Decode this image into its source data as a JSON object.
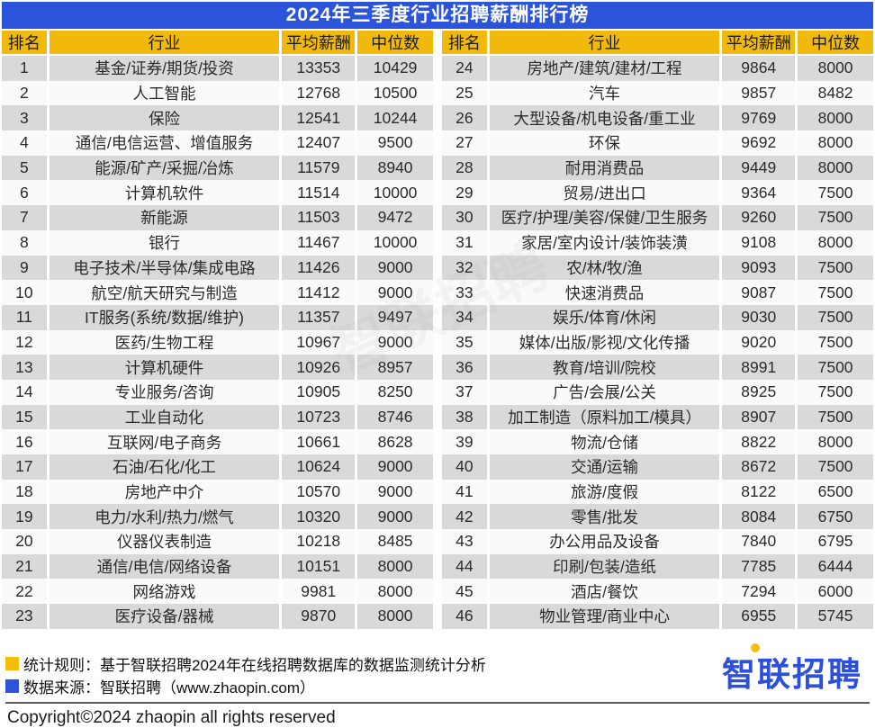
{
  "title": "2024年三季度行业招聘薪酬排行榜",
  "chart_data": {
    "type": "table",
    "title": "2024年三季度行业招聘薪酬排行榜",
    "columns": [
      "排名",
      "行业",
      "平均薪酬",
      "中位数"
    ],
    "rows": [
      [
        1,
        "基金/证券/期货/投资",
        13353,
        10429
      ],
      [
        2,
        "人工智能",
        12768,
        10500
      ],
      [
        3,
        "保险",
        12541,
        10244
      ],
      [
        4,
        "通信/电信运营、增值服务",
        12407,
        9500
      ],
      [
        5,
        "能源/矿产/采掘/冶炼",
        11579,
        8940
      ],
      [
        6,
        "计算机软件",
        11514,
        10000
      ],
      [
        7,
        "新能源",
        11503,
        9472
      ],
      [
        8,
        "银行",
        11467,
        10000
      ],
      [
        9,
        "电子技术/半导体/集成电路",
        11426,
        9000
      ],
      [
        10,
        "航空/航天研究与制造",
        11412,
        9000
      ],
      [
        11,
        "IT服务(系统/数据/维护)",
        11357,
        9497
      ],
      [
        12,
        "医药/生物工程",
        10967,
        9000
      ],
      [
        13,
        "计算机硬件",
        10926,
        8957
      ],
      [
        14,
        "专业服务/咨询",
        10905,
        8250
      ],
      [
        15,
        "工业自动化",
        10723,
        8746
      ],
      [
        16,
        "互联网/电子商务",
        10661,
        8628
      ],
      [
        17,
        "石油/石化/化工",
        10624,
        9000
      ],
      [
        18,
        "房地产中介",
        10570,
        9000
      ],
      [
        19,
        "电力/水利/热力/燃气",
        10320,
        9000
      ],
      [
        20,
        "仪器仪表制造",
        10218,
        8485
      ],
      [
        21,
        "通信/电信/网络设备",
        10151,
        8000
      ],
      [
        22,
        "网络游戏",
        9981,
        8000
      ],
      [
        23,
        "医疗设备/器械",
        9870,
        8000
      ],
      [
        24,
        "房地产/建筑/建材/工程",
        9864,
        8000
      ],
      [
        25,
        "汽车",
        9857,
        8482
      ],
      [
        26,
        "大型设备/机电设备/重工业",
        9769,
        8000
      ],
      [
        27,
        "环保",
        9692,
        8000
      ],
      [
        28,
        "耐用消费品",
        9449,
        8000
      ],
      [
        29,
        "贸易/进出口",
        9364,
        7500
      ],
      [
        30,
        "医疗/护理/美容/保健/卫生服务",
        9260,
        7500
      ],
      [
        31,
        "家居/室内设计/装饰装潢",
        9108,
        8000
      ],
      [
        32,
        "农/林/牧/渔",
        9093,
        7500
      ],
      [
        33,
        "快速消费品",
        9087,
        7500
      ],
      [
        34,
        "娱乐/体育/休闲",
        9030,
        7500
      ],
      [
        35,
        "媒体/出版/影视/文化传播",
        9020,
        7500
      ],
      [
        36,
        "教育/培训/院校",
        8991,
        7500
      ],
      [
        37,
        "广告/会展/公关",
        8925,
        7500
      ],
      [
        38,
        "加工制造（原料加工/模具）",
        8907,
        7500
      ],
      [
        39,
        "物流/仓储",
        8822,
        8000
      ],
      [
        40,
        "交通/运输",
        8672,
        7500
      ],
      [
        41,
        "旅游/度假",
        8122,
        6500
      ],
      [
        42,
        "零售/批发",
        8084,
        6750
      ],
      [
        43,
        "办公用品及设备",
        7840,
        6795
      ],
      [
        44,
        "印刷/包装/造纸",
        7785,
        6444
      ],
      [
        45,
        "酒店/餐饮",
        7294,
        6000
      ],
      [
        46,
        "物业管理/商业中心",
        6955,
        5745
      ]
    ],
    "layout_hints": {
      "split": "two side-by-side tables, ranks 1-23 left, 24-46 right",
      "striping": "odd rows gray, even rows light"
    }
  },
  "footer": {
    "note1": "统计规则：基于智联招聘2024年在线招聘数据库的数据监测统计分析",
    "note2": "数据来源：智联招聘（www.zhaopin.com）",
    "copyright": "Copyright©2024 zhaopin all rights reserved",
    "logo_text_zhi": "智",
    "logo_text_rest": "联招聘"
  },
  "colors": {
    "title_blue": "#2B54DB",
    "header_gold": "#F0B90B",
    "legend_gold": "#F5BD0C",
    "row_gray": "#D9D9D9",
    "row_light": "#FAFAFA",
    "logo_blue": "#2D50DC"
  }
}
